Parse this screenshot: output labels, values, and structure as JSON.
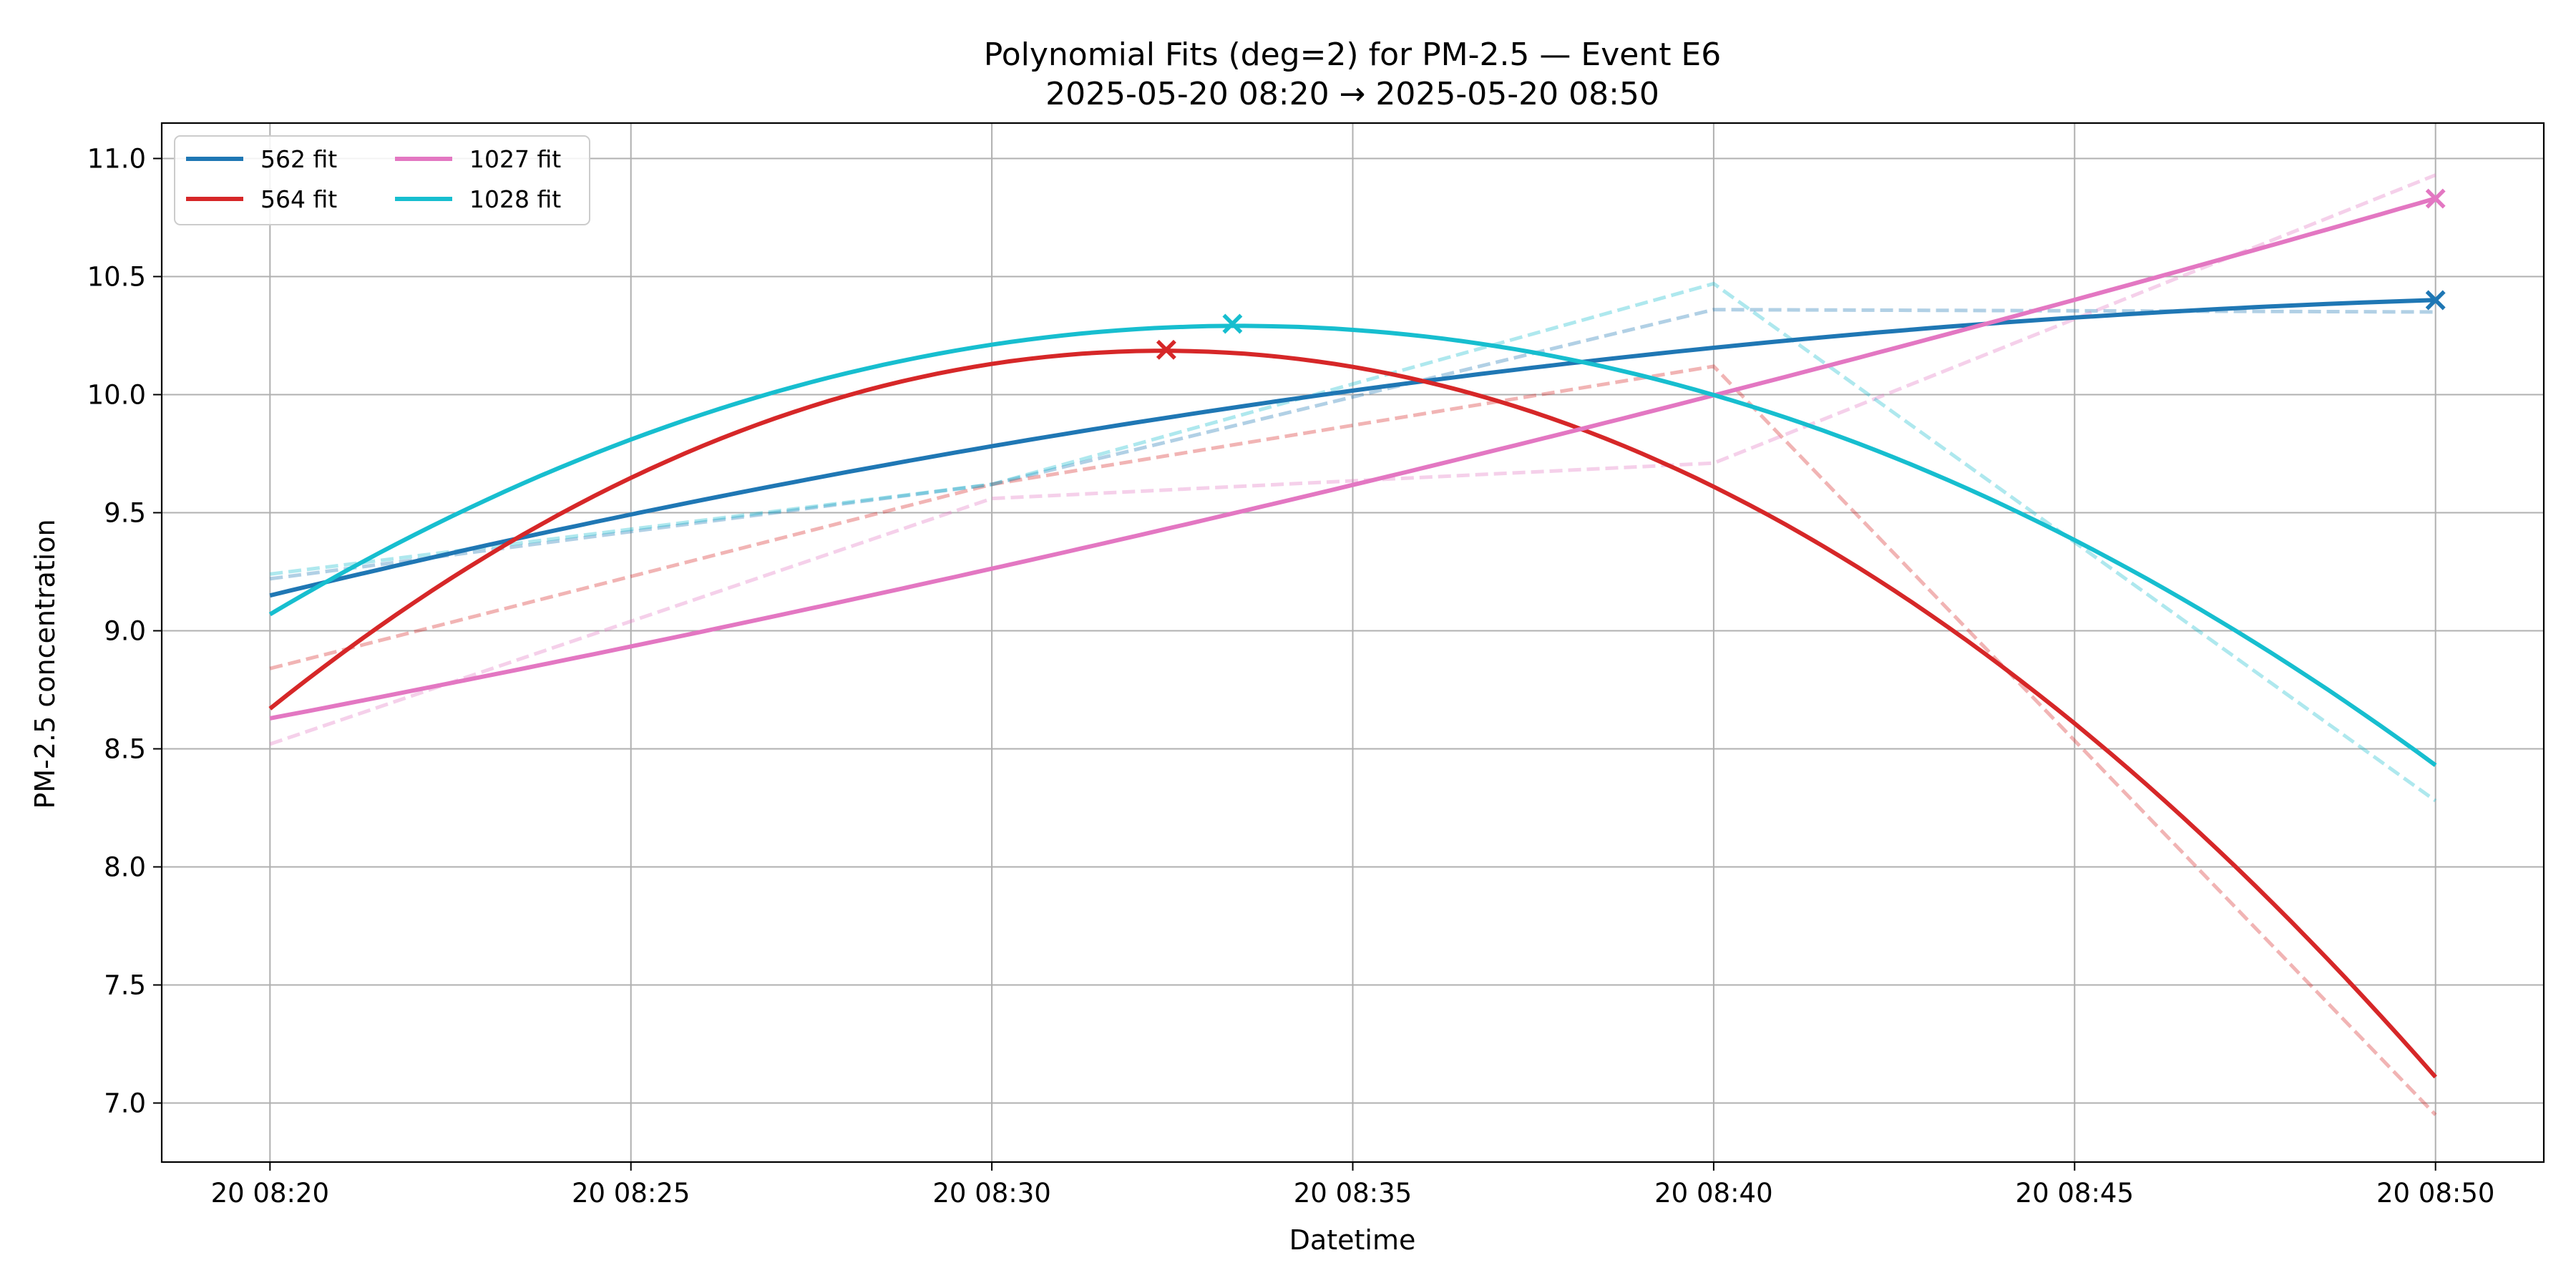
{
  "chart_data": {
    "type": "line",
    "title": "Polynomial Fits (deg=2) for PM-2.5 — Event E6",
    "subtitle": "2025-05-20 08:20 → 2025-05-20 08:50",
    "xlabel": "Datetime",
    "ylabel": "PM-2.5 concentration",
    "x_domain": [
      "2025-05-20 08:20",
      "2025-05-20 08:50"
    ],
    "xlim": [
      "2025-05-20 08:18:30",
      "2025-05-20 08:51:30"
    ],
    "ylim": [
      6.75,
      11.15
    ],
    "grid": true,
    "legend_position": "upper-left",
    "legend_columns": 2,
    "x_ticks": [
      {
        "t": "2025-05-20 08:20",
        "label": "20 08:20"
      },
      {
        "t": "2025-05-20 08:25",
        "label": "20 08:25"
      },
      {
        "t": "2025-05-20 08:30",
        "label": "20 08:30"
      },
      {
        "t": "2025-05-20 08:35",
        "label": "20 08:35"
      },
      {
        "t": "2025-05-20 08:40",
        "label": "20 08:40"
      },
      {
        "t": "2025-05-20 08:45",
        "label": "20 08:45"
      },
      {
        "t": "2025-05-20 08:50",
        "label": "20 08:50"
      }
    ],
    "y_ticks": [
      7.0,
      7.5,
      8.0,
      8.5,
      9.0,
      9.5,
      10.0,
      10.5,
      11.0
    ],
    "series": [
      {
        "name": "562 fit",
        "color": "#1f77b4",
        "observed": [
          {
            "t": "2025-05-20 08:20",
            "y": 9.22
          },
          {
            "t": "2025-05-20 08:30",
            "y": 9.62
          },
          {
            "t": "2025-05-20 08:40",
            "y": 10.36
          },
          {
            "t": "2025-05-20 08:50",
            "y": 10.35
          }
        ],
        "fit": [
          {
            "t": "2025-05-20 08:20",
            "y": 9.15
          },
          {
            "t": "2025-05-20 08:30",
            "y": 9.78
          },
          {
            "t": "2025-05-20 08:40",
            "y": 10.2
          },
          {
            "t": "2025-05-20 08:50",
            "y": 10.4
          }
        ],
        "marker": {
          "t": "2025-05-20 08:50",
          "y": 10.4
        }
      },
      {
        "name": "564 fit",
        "color": "#d62728",
        "observed": [
          {
            "t": "2025-05-20 08:20",
            "y": 8.84
          },
          {
            "t": "2025-05-20 08:30",
            "y": 9.62
          },
          {
            "t": "2025-05-20 08:40",
            "y": 10.12
          },
          {
            "t": "2025-05-20 08:50",
            "y": 6.95
          }
        ],
        "fit": [
          {
            "t": "2025-05-20 08:20",
            "y": 8.67
          },
          {
            "t": "2025-05-20 08:30",
            "y": 10.13
          },
          {
            "t": "2025-05-20 08:40",
            "y": 9.61
          },
          {
            "t": "2025-05-20 08:50",
            "y": 7.11
          }
        ],
        "marker": {
          "t": "2025-05-20 08:32:25",
          "y": 10.19
        }
      },
      {
        "name": "1027 fit",
        "color": "#e377c2",
        "observed": [
          {
            "t": "2025-05-20 08:20",
            "y": 8.52
          },
          {
            "t": "2025-05-20 08:30",
            "y": 9.56
          },
          {
            "t": "2025-05-20 08:40",
            "y": 9.71
          },
          {
            "t": "2025-05-20 08:50",
            "y": 10.93
          }
        ],
        "fit": [
          {
            "t": "2025-05-20 08:20",
            "y": 8.63
          },
          {
            "t": "2025-05-20 08:30",
            "y": 9.26
          },
          {
            "t": "2025-05-20 08:40",
            "y": 10.0
          },
          {
            "t": "2025-05-20 08:50",
            "y": 10.83
          }
        ],
        "marker": {
          "t": "2025-05-20 08:50",
          "y": 10.83
        }
      },
      {
        "name": "1028 fit",
        "color": "#17becf",
        "observed": [
          {
            "t": "2025-05-20 08:20",
            "y": 9.24
          },
          {
            "t": "2025-05-20 08:30",
            "y": 9.62
          },
          {
            "t": "2025-05-20 08:40",
            "y": 10.47
          },
          {
            "t": "2025-05-20 08:50",
            "y": 8.28
          }
        ],
        "fit": [
          {
            "t": "2025-05-20 08:20",
            "y": 9.07
          },
          {
            "t": "2025-05-20 08:30",
            "y": 10.21
          },
          {
            "t": "2025-05-20 08:40",
            "y": 10.0
          },
          {
            "t": "2025-05-20 08:50",
            "y": 8.43
          }
        ],
        "marker": {
          "t": "2025-05-20 08:33:20",
          "y": 10.3
        }
      }
    ]
  }
}
